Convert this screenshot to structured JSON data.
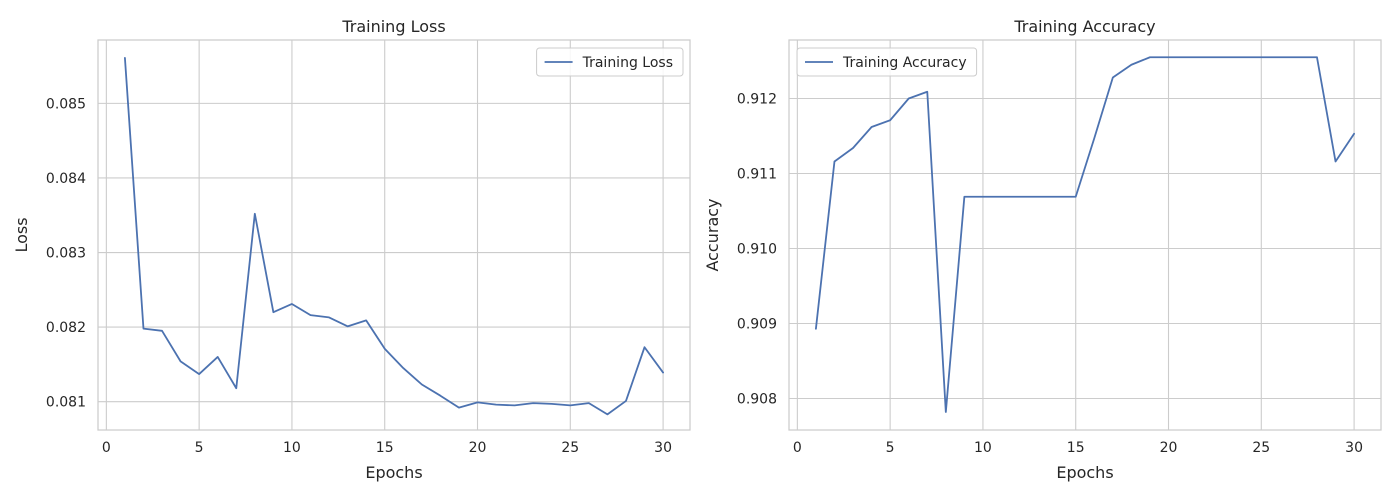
{
  "colors": {
    "series": "#4c72b0",
    "grid": "#cccccc",
    "text": "#262626"
  },
  "chart_data": [
    {
      "type": "line",
      "title": "Training Loss",
      "xlabel": "Epochs",
      "ylabel": "Loss",
      "xlim": [
        -0.45,
        31.45
      ],
      "ylim": [
        0.08062,
        0.08585
      ],
      "xticks": [
        0,
        5,
        10,
        15,
        20,
        25,
        30
      ],
      "yticks": [
        0.081,
        0.082,
        0.083,
        0.084,
        0.085
      ],
      "ytick_labels": [
        "0.081",
        "0.082",
        "0.083",
        "0.084",
        "0.085"
      ],
      "grid": true,
      "legend_position": "upper right",
      "series": [
        {
          "name": "Training Loss",
          "x": [
            1,
            2,
            3,
            4,
            5,
            6,
            7,
            8,
            9,
            10,
            11,
            12,
            13,
            14,
            15,
            16,
            17,
            18,
            19,
            20,
            21,
            22,
            23,
            24,
            25,
            26,
            27,
            28,
            29,
            30
          ],
          "values": [
            0.08561,
            0.08198,
            0.08195,
            0.08154,
            0.08137,
            0.0816,
            0.08118,
            0.08352,
            0.0822,
            0.08231,
            0.08216,
            0.08213,
            0.08201,
            0.08209,
            0.08171,
            0.08145,
            0.08123,
            0.08108,
            0.08092,
            0.08099,
            0.08096,
            0.08095,
            0.08098,
            0.08097,
            0.08095,
            0.08098,
            0.08083,
            0.08101,
            0.08173,
            0.08139
          ]
        }
      ]
    },
    {
      "type": "line",
      "title": "Training Accuracy",
      "xlabel": "Epochs",
      "ylabel": "Accuracy",
      "xlim": [
        -0.45,
        31.45
      ],
      "ylim": [
        0.90758,
        0.91278
      ],
      "xticks": [
        0,
        5,
        10,
        15,
        20,
        25,
        30
      ],
      "yticks": [
        0.908,
        0.909,
        0.91,
        0.911,
        0.912
      ],
      "ytick_labels": [
        "0.908",
        "0.909",
        "0.910",
        "0.911",
        "0.912"
      ],
      "grid": true,
      "legend_position": "upper left",
      "series": [
        {
          "name": "Training Accuracy",
          "x": [
            1,
            2,
            3,
            4,
            5,
            6,
            7,
            8,
            9,
            10,
            11,
            12,
            13,
            14,
            15,
            16,
            17,
            18,
            19,
            20,
            21,
            22,
            23,
            24,
            25,
            26,
            27,
            28,
            29,
            30
          ],
          "values": [
            0.90893,
            0.91116,
            0.91134,
            0.91162,
            0.91171,
            0.912,
            0.91209,
            0.90782,
            0.91069,
            0.91069,
            0.91069,
            0.91069,
            0.91069,
            0.91069,
            0.91069,
            0.91147,
            0.91228,
            0.91245,
            0.91255,
            0.91255,
            0.91255,
            0.91255,
            0.91255,
            0.91255,
            0.91255,
            0.91255,
            0.91255,
            0.91255,
            0.91116,
            0.91153
          ]
        }
      ]
    }
  ]
}
